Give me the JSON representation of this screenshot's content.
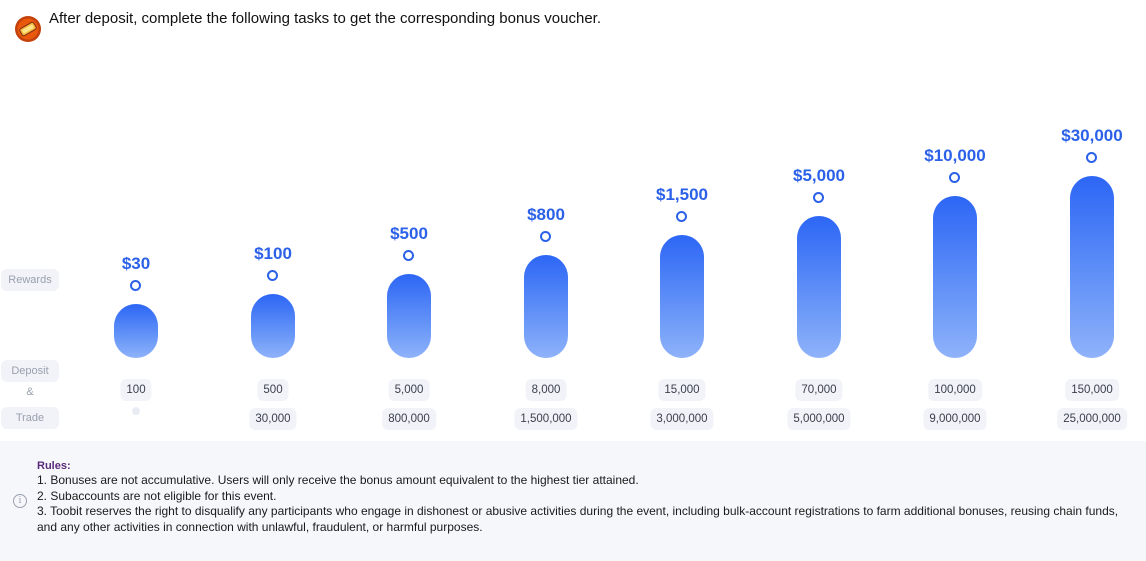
{
  "header": {
    "icon": "coin-icon",
    "text": "After deposit, complete the following tasks to get the corresponding bonus voucher."
  },
  "labels": {
    "rewards": "Rewards",
    "deposit": "Deposit",
    "amp": "&",
    "trade": "Trade"
  },
  "tiers": [
    {
      "reward": "$30",
      "deposit": "100",
      "trade": ""
    },
    {
      "reward": "$100",
      "deposit": "500",
      "trade": "30,000"
    },
    {
      "reward": "$500",
      "deposit": "5,000",
      "trade": "800,000"
    },
    {
      "reward": "$800",
      "deposit": "8,000",
      "trade": "1,500,000"
    },
    {
      "reward": "$1,500",
      "deposit": "15,000",
      "trade": "3,000,000"
    },
    {
      "reward": "$5,000",
      "deposit": "70,000",
      "trade": "5,000,000"
    },
    {
      "reward": "$10,000",
      "deposit": "100,000",
      "trade": "9,000,000"
    },
    {
      "reward": "$30,000",
      "deposit": "150,000",
      "trade": "25,000,000"
    }
  ],
  "rules": {
    "title": "Rules:",
    "items": [
      "1. Bonuses are not accumulative. Users will only receive the bonus amount equivalent to the highest tier attained.",
      "2. Subaccounts are not eligible for this event.",
      "3. Toobit reserves the right to disqualify any participants who engage in dishonest or abusive activities during the event, including bulk-account registrations to farm additional bonuses, reusing chain funds, and any other activities in connection with unlawful, fraudulent, or harmful purposes."
    ]
  },
  "colors": {
    "accent": "#2b61e8",
    "bar_top": "#2c66f5",
    "bar_bottom": "#8fb2fa",
    "pill_bg": "#f1f3f9",
    "rules_bg": "#f6f7fb"
  }
}
